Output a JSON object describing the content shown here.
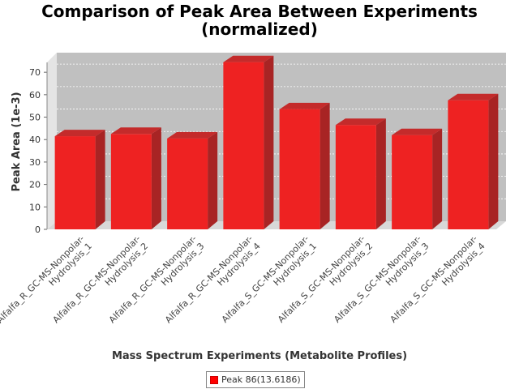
{
  "chart_data": {
    "type": "bar",
    "title_line1": "Comparison of Peak Area Between Experiments",
    "title_line2": "(normalized)",
    "xlabel": "Mass Spectrum Experiments (Metabolite Profiles)",
    "ylabel": "Peak Area (1e-3)",
    "ylim": [
      0,
      78
    ],
    "yticks": [
      0,
      10,
      20,
      30,
      40,
      50,
      60,
      70
    ],
    "categories": [
      [
        "Alfalfa_R_GC-MS-Nonpolar-",
        "Hydrolysis_1"
      ],
      [
        "Alfalfa_R_GC-MS-Nonpolar-",
        "Hydrolysis_2"
      ],
      [
        "Alfalfa_R_GC-MS-Nonpolar-",
        "Hydrolysis_3"
      ],
      [
        "Alfalfa_R_GC-MS-Nonpolar-",
        "Hydrolysis_4"
      ],
      [
        "Alfalfa_S_GC-MS-Nonpolar-",
        "Hydrolysis_1"
      ],
      [
        "Alfalfa_S_GC-MS-Nonpolar-",
        "Hydrolysis_2"
      ],
      [
        "Alfalfa_S_GC-MS-Nonpolar-",
        "Hydrolysis_3"
      ],
      [
        "Alfalfa_S_GC-MS-Nonpolar-",
        "Hydrolysis_4"
      ]
    ],
    "series": [
      {
        "name": "Peak 86(13.6186)",
        "values": [
          41.5,
          42.5,
          40.5,
          74.5,
          53.5,
          46.5,
          42,
          57.5
        ]
      }
    ],
    "grid": true,
    "legend": "bottom",
    "colors": {
      "bar": "#ee2222",
      "bar_top": "#c42b2b",
      "bar_side": "#a82424",
      "plot_bg": "#c0c0c0"
    }
  }
}
